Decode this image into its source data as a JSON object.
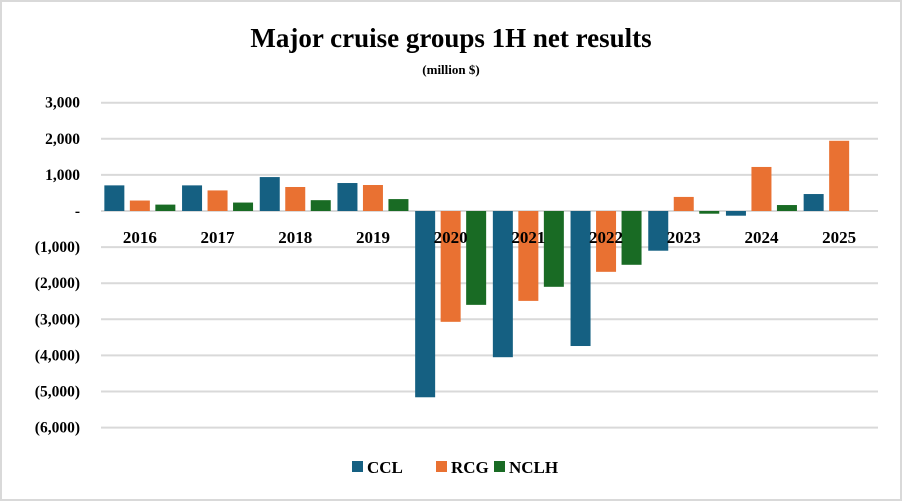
{
  "chart_data": {
    "type": "bar",
    "title": "Major cruise groups 1H net results",
    "subtitle": "(million $)",
    "xlabel": "",
    "ylabel": "",
    "categories": [
      "2016",
      "2017",
      "2018",
      "2019",
      "2020",
      "2021",
      "2022",
      "2023",
      "2024",
      "2025"
    ],
    "series": [
      {
        "name": "CCL",
        "color": "#156082",
        "values": [
          710,
          710,
          940,
          775,
          -5160,
          -4050,
          -3740,
          -1100,
          -130,
          470
        ]
      },
      {
        "name": "RCG",
        "color": "#E97132",
        "values": [
          290,
          570,
          665,
          720,
          -3070,
          -2490,
          -1685,
          390,
          1220,
          1945
        ]
      },
      {
        "name": "NCLH",
        "color": "#196B24",
        "values": [
          177,
          234,
          300,
          330,
          -2600,
          -2100,
          -1490,
          -75,
          165,
          null
        ]
      }
    ],
    "ylim": [
      -6000,
      3000
    ],
    "yticks": [
      3000,
      2000,
      1000,
      0,
      -1000,
      -2000,
      -3000,
      -4000,
      -5000,
      -6000
    ],
    "ytick_labels": [
      "3,000",
      "2,000",
      "1,000",
      "-",
      "(1,000)",
      "(2,000)",
      "(3,000)",
      "(4,000)",
      "(5,000)",
      "(6,000)"
    ],
    "grid": true,
    "legend_position": "bottom"
  }
}
